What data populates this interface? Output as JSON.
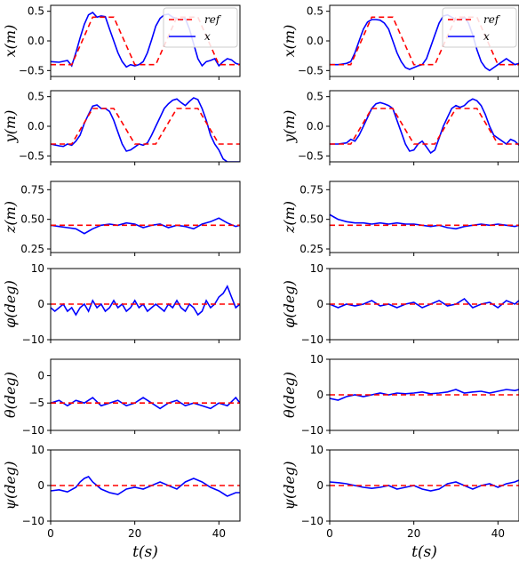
{
  "colors": {
    "ref": "#ff0000",
    "actual": "#0000ff",
    "axes": "#000000"
  },
  "legend": {
    "ref_label": "ref",
    "actual_label": "x",
    "placement": "top-right"
  },
  "xlabel": "t(s)",
  "x_ticks": [
    0,
    20,
    40
  ],
  "chart_data": [
    {
      "id": "L-x",
      "type": "line",
      "ylabel": "x(m)",
      "xlim": [
        0,
        45
      ],
      "ylim": [
        -0.6,
        0.6
      ],
      "yticks": [
        -0.5,
        0.0,
        0.5
      ],
      "tick_fmt": 1,
      "legend": true,
      "grid": false,
      "ref": {
        "x": [
          0,
          5,
          10,
          15,
          20,
          25,
          30,
          35,
          40,
          45
        ],
        "y": [
          -0.4,
          -0.4,
          0.4,
          0.4,
          -0.4,
          -0.4,
          0.4,
          0.4,
          -0.4,
          -0.4
        ]
      },
      "actual": {
        "x": [
          0,
          2,
          4,
          5,
          6,
          7,
          8,
          9,
          10,
          11,
          12,
          13,
          14,
          15,
          16,
          17,
          18,
          19,
          20,
          21,
          22,
          23,
          24,
          25,
          26,
          27,
          28,
          29,
          30,
          31,
          32,
          33,
          34,
          35,
          36,
          37,
          38,
          39,
          40,
          41,
          42,
          43,
          44,
          45
        ],
        "y": [
          -0.35,
          -0.36,
          -0.33,
          -0.42,
          -0.2,
          0.05,
          0.28,
          0.44,
          0.48,
          0.4,
          0.42,
          0.41,
          0.2,
          0.0,
          -0.2,
          -0.35,
          -0.44,
          -0.4,
          -0.42,
          -0.4,
          -0.35,
          -0.2,
          0.02,
          0.25,
          0.38,
          0.44,
          0.45,
          0.4,
          0.38,
          0.35,
          0.38,
          0.2,
          -0.05,
          -0.3,
          -0.42,
          -0.35,
          -0.33,
          -0.3,
          -0.42,
          -0.35,
          -0.3,
          -0.32,
          -0.38,
          -0.4
        ]
      }
    },
    {
      "id": "R-x",
      "type": "line",
      "ylabel": "x(m)",
      "xlim": [
        0,
        45
      ],
      "ylim": [
        -0.6,
        0.6
      ],
      "yticks": [
        -0.5,
        0.0,
        0.5
      ],
      "tick_fmt": 1,
      "legend": true,
      "grid": false,
      "ref": {
        "x": [
          0,
          5,
          10,
          15,
          20,
          25,
          30,
          35,
          40,
          45
        ],
        "y": [
          -0.4,
          -0.4,
          0.4,
          0.4,
          -0.4,
          -0.4,
          0.4,
          0.4,
          -0.4,
          -0.4
        ]
      },
      "actual": {
        "x": [
          0,
          2,
          4,
          5,
          6,
          7,
          8,
          9,
          10,
          11,
          12,
          13,
          14,
          15,
          16,
          17,
          18,
          19,
          20,
          21,
          22,
          23,
          24,
          25,
          26,
          27,
          28,
          29,
          30,
          31,
          32,
          33,
          34,
          35,
          36,
          37,
          38,
          39,
          40,
          41,
          42,
          43,
          44,
          45
        ],
        "y": [
          -0.4,
          -0.4,
          -0.38,
          -0.35,
          -0.2,
          0.0,
          0.2,
          0.32,
          0.36,
          0.36,
          0.35,
          0.3,
          0.2,
          0.0,
          -0.2,
          -0.35,
          -0.45,
          -0.48,
          -0.45,
          -0.42,
          -0.4,
          -0.3,
          -0.1,
          0.1,
          0.3,
          0.42,
          0.44,
          0.4,
          0.36,
          0.35,
          0.4,
          0.3,
          0.1,
          -0.15,
          -0.35,
          -0.45,
          -0.5,
          -0.45,
          -0.4,
          -0.35,
          -0.3,
          -0.35,
          -0.4,
          -0.38
        ]
      }
    },
    {
      "id": "L-y",
      "type": "line",
      "ylabel": "y(m)",
      "xlim": [
        0,
        45
      ],
      "ylim": [
        -0.6,
        0.6
      ],
      "yticks": [
        -0.5,
        0.0,
        0.5
      ],
      "tick_fmt": 1,
      "legend": false,
      "grid": false,
      "ref": {
        "x": [
          0,
          5,
          10,
          15,
          20,
          25,
          30,
          35,
          40,
          45
        ],
        "y": [
          -0.3,
          -0.3,
          0.3,
          0.3,
          -0.3,
          -0.3,
          0.3,
          0.3,
          -0.3,
          -0.3
        ]
      },
      "actual": {
        "x": [
          0,
          2,
          3,
          4,
          5,
          6,
          7,
          8,
          9,
          10,
          11,
          12,
          13,
          14,
          15,
          16,
          17,
          18,
          19,
          20,
          21,
          22,
          23,
          24,
          25,
          26,
          27,
          28,
          29,
          30,
          31,
          32,
          33,
          34,
          35,
          36,
          37,
          38,
          39,
          40,
          41,
          42,
          43,
          44,
          44.5,
          45
        ],
        "y": [
          -0.3,
          -0.33,
          -0.34,
          -0.3,
          -0.32,
          -0.25,
          -0.15,
          0.05,
          0.2,
          0.34,
          0.36,
          0.3,
          0.3,
          0.25,
          0.1,
          -0.1,
          -0.3,
          -0.42,
          -0.4,
          -0.35,
          -0.3,
          -0.32,
          -0.28,
          -0.15,
          0.0,
          0.15,
          0.3,
          0.38,
          0.44,
          0.46,
          0.4,
          0.35,
          0.42,
          0.48,
          0.45,
          0.3,
          0.1,
          -0.15,
          -0.3,
          -0.4,
          -0.55,
          -0.6,
          -0.6,
          -0.6,
          -0.6,
          -0.6
        ]
      }
    },
    {
      "id": "R-y",
      "type": "line",
      "ylabel": "y(m)",
      "xlim": [
        0,
        45
      ],
      "ylim": [
        -0.6,
        0.6
      ],
      "yticks": [
        -0.5,
        0.0,
        0.5
      ],
      "tick_fmt": 1,
      "legend": false,
      "grid": false,
      "ref": {
        "x": [
          0,
          5,
          10,
          15,
          20,
          25,
          30,
          35,
          40,
          45
        ],
        "y": [
          -0.3,
          -0.3,
          0.3,
          0.3,
          -0.3,
          -0.3,
          0.3,
          0.3,
          -0.3,
          -0.3
        ]
      },
      "actual": {
        "x": [
          0,
          2,
          4,
          5,
          6,
          7,
          8,
          9,
          10,
          11,
          12,
          13,
          14,
          15,
          16,
          17,
          18,
          19,
          20,
          21,
          22,
          23,
          24,
          25,
          26,
          27,
          28,
          29,
          30,
          31,
          32,
          33,
          34,
          35,
          36,
          37,
          38,
          39,
          40,
          41,
          42,
          43,
          44,
          45
        ],
        "y": [
          -0.3,
          -0.3,
          -0.28,
          -0.22,
          -0.25,
          -0.15,
          0.0,
          0.15,
          0.3,
          0.38,
          0.4,
          0.38,
          0.35,
          0.3,
          0.1,
          -0.1,
          -0.3,
          -0.42,
          -0.4,
          -0.3,
          -0.25,
          -0.35,
          -0.45,
          -0.4,
          -0.2,
          0.0,
          0.15,
          0.3,
          0.35,
          0.32,
          0.35,
          0.42,
          0.46,
          0.43,
          0.35,
          0.2,
          0.0,
          -0.15,
          -0.2,
          -0.25,
          -0.3,
          -0.22,
          -0.25,
          -0.32
        ]
      }
    },
    {
      "id": "L-z",
      "type": "line",
      "ylabel": "z(m)",
      "xlim": [
        0,
        45
      ],
      "ylim": [
        0.22,
        0.82
      ],
      "yticks": [
        0.25,
        0.5,
        0.75
      ],
      "tick_fmt": 2,
      "legend": false,
      "grid": false,
      "ref": {
        "x": [
          0,
          45
        ],
        "y": [
          0.45,
          0.45
        ]
      },
      "actual": {
        "x": [
          0,
          2,
          4,
          6,
          8,
          9,
          10,
          12,
          14,
          16,
          18,
          20,
          22,
          24,
          26,
          28,
          30,
          32,
          34,
          36,
          38,
          40,
          42,
          44,
          45
        ],
        "y": [
          0.45,
          0.44,
          0.43,
          0.42,
          0.38,
          0.4,
          0.42,
          0.45,
          0.46,
          0.45,
          0.47,
          0.46,
          0.43,
          0.45,
          0.46,
          0.43,
          0.45,
          0.44,
          0.42,
          0.46,
          0.48,
          0.51,
          0.47,
          0.44,
          0.45
        ]
      }
    },
    {
      "id": "R-z",
      "type": "line",
      "ylabel": "z(m)",
      "xlim": [
        0,
        45
      ],
      "ylim": [
        0.22,
        0.82
      ],
      "yticks": [
        0.25,
        0.5,
        0.75
      ],
      "tick_fmt": 2,
      "legend": false,
      "grid": false,
      "ref": {
        "x": [
          0,
          45
        ],
        "y": [
          0.45,
          0.45
        ]
      },
      "actual": {
        "x": [
          0,
          1,
          2,
          4,
          6,
          8,
          10,
          12,
          14,
          16,
          18,
          20,
          22,
          24,
          26,
          28,
          30,
          32,
          34,
          36,
          38,
          40,
          42,
          44,
          45
        ],
        "y": [
          0.54,
          0.52,
          0.5,
          0.48,
          0.47,
          0.47,
          0.46,
          0.47,
          0.46,
          0.47,
          0.46,
          0.46,
          0.45,
          0.44,
          0.45,
          0.43,
          0.42,
          0.44,
          0.45,
          0.46,
          0.45,
          0.46,
          0.45,
          0.44,
          0.45
        ]
      }
    },
    {
      "id": "L-phi",
      "type": "line",
      "ylabel": "φ(deg)",
      "xlim": [
        0,
        45
      ],
      "ylim": [
        -10,
        10
      ],
      "yticks": [
        -10,
        0,
        10
      ],
      "tick_fmt": 0,
      "legend": false,
      "grid": false,
      "ref": {
        "x": [
          0,
          45
        ],
        "y": [
          0,
          0
        ]
      },
      "actual": {
        "x": [
          0,
          1,
          2,
          3,
          4,
          5,
          6,
          7,
          8,
          9,
          10,
          11,
          12,
          13,
          14,
          15,
          16,
          17,
          18,
          19,
          20,
          21,
          22,
          23,
          24,
          25,
          26,
          27,
          28,
          29,
          30,
          31,
          32,
          33,
          34,
          35,
          36,
          37,
          38,
          39,
          40,
          41,
          42,
          43,
          44,
          45
        ],
        "y": [
          -1,
          -2,
          -1,
          0,
          -2,
          -1,
          -3,
          -1,
          0,
          -2,
          1,
          -1,
          0,
          -2,
          -1,
          1,
          -1,
          0,
          -2,
          -1,
          1,
          -1,
          0,
          -2,
          -1,
          0,
          -1,
          -2,
          0,
          -1,
          1,
          -1,
          -2,
          0,
          -1,
          -3,
          -2,
          1,
          -1,
          0,
          2,
          3,
          5,
          2,
          -1,
          0
        ]
      }
    },
    {
      "id": "R-phi",
      "type": "line",
      "ylabel": "φ(deg)",
      "xlim": [
        0,
        45
      ],
      "ylim": [
        -10,
        10
      ],
      "yticks": [
        -10,
        0,
        10
      ],
      "tick_fmt": 0,
      "legend": false,
      "grid": false,
      "ref": {
        "x": [
          0,
          45
        ],
        "y": [
          0,
          0
        ]
      },
      "actual": {
        "x": [
          0,
          2,
          4,
          6,
          8,
          10,
          12,
          14,
          16,
          18,
          20,
          22,
          24,
          26,
          28,
          30,
          32,
          34,
          36,
          38,
          40,
          42,
          44,
          45
        ],
        "y": [
          0,
          -1,
          0,
          -0.5,
          0,
          1,
          -0.5,
          0,
          -1,
          0,
          0.5,
          -1,
          0,
          1,
          -0.5,
          0,
          1.5,
          -1,
          0,
          0.5,
          -1,
          1,
          0,
          1
        ]
      }
    },
    {
      "id": "L-theta",
      "type": "line",
      "ylabel": "θ(deg)",
      "xlim": [
        0,
        45
      ],
      "ylim": [
        -10,
        3
      ],
      "yticks": [
        -10,
        -5,
        0
      ],
      "tick_fmt": 0,
      "legend": false,
      "grid": false,
      "ref": {
        "x": [
          0,
          45
        ],
        "y": [
          -5,
          -5
        ]
      },
      "actual": {
        "x": [
          0,
          2,
          4,
          6,
          8,
          10,
          12,
          14,
          16,
          18,
          20,
          22,
          24,
          26,
          28,
          30,
          32,
          34,
          36,
          38,
          40,
          42,
          44,
          45
        ],
        "y": [
          -5,
          -4.5,
          -5.5,
          -4.5,
          -5,
          -4,
          -5.5,
          -5,
          -4.5,
          -5.5,
          -5,
          -4,
          -5,
          -6,
          -5,
          -4.5,
          -5.5,
          -5,
          -5.5,
          -6,
          -5,
          -5.5,
          -4,
          -5
        ]
      }
    },
    {
      "id": "R-theta",
      "type": "line",
      "ylabel": "θ(deg)",
      "xlim": [
        0,
        45
      ],
      "ylim": [
        -10,
        10
      ],
      "yticks": [
        -10,
        0,
        10
      ],
      "tick_fmt": 0,
      "legend": false,
      "grid": false,
      "ref": {
        "x": [
          0,
          45
        ],
        "y": [
          0,
          0
        ]
      },
      "actual": {
        "x": [
          0,
          2,
          4,
          6,
          8,
          10,
          12,
          14,
          16,
          18,
          20,
          22,
          24,
          26,
          28,
          30,
          32,
          34,
          36,
          38,
          40,
          42,
          44,
          45
        ],
        "y": [
          -1,
          -1.5,
          -0.5,
          0,
          -0.5,
          0,
          0.5,
          0,
          0.5,
          0.3,
          0.5,
          0.8,
          0.3,
          0.5,
          0.8,
          1.5,
          0.5,
          0.8,
          1,
          0.5,
          1,
          1.5,
          1.2,
          1.5
        ]
      }
    },
    {
      "id": "L-psi",
      "type": "line",
      "ylabel": "ψ(deg)",
      "xlim": [
        0,
        45
      ],
      "ylim": [
        -10,
        10
      ],
      "yticks": [
        -10,
        0,
        10
      ],
      "tick_fmt": 0,
      "legend": false,
      "grid": false,
      "ref": {
        "x": [
          0,
          45
        ],
        "y": [
          0,
          0
        ]
      },
      "actual": {
        "x": [
          0,
          2,
          4,
          6,
          7,
          8,
          9,
          10,
          11,
          12,
          14,
          16,
          18,
          20,
          22,
          24,
          26,
          28,
          30,
          32,
          34,
          36,
          38,
          40,
          42,
          44,
          45
        ],
        "y": [
          -1.5,
          -1.2,
          -1.8,
          -0.5,
          1,
          2,
          2.5,
          1,
          0,
          -1,
          -2,
          -2.5,
          -1,
          -0.5,
          -1,
          0,
          1,
          0,
          -1,
          1,
          2,
          1,
          -0.5,
          -1.5,
          -3,
          -2,
          -2
        ]
      }
    },
    {
      "id": "R-psi",
      "type": "line",
      "ylabel": "ψ(deg)",
      "xlim": [
        0,
        45
      ],
      "ylim": [
        -10,
        10
      ],
      "yticks": [
        -10,
        0,
        10
      ],
      "tick_fmt": 0,
      "legend": false,
      "grid": false,
      "ref": {
        "x": [
          0,
          45
        ],
        "y": [
          0,
          0
        ]
      },
      "actual": {
        "x": [
          0,
          2,
          4,
          6,
          8,
          10,
          12,
          14,
          16,
          18,
          20,
          22,
          24,
          26,
          28,
          30,
          32,
          34,
          36,
          38,
          40,
          42,
          44,
          45
        ],
        "y": [
          1,
          0.8,
          0.5,
          0,
          -0.5,
          -0.8,
          -0.5,
          0,
          -1,
          -0.5,
          0,
          -1,
          -1.5,
          -1,
          0.5,
          1,
          0,
          -1,
          0,
          0.5,
          -0.5,
          0.5,
          1,
          1.5
        ]
      }
    }
  ]
}
